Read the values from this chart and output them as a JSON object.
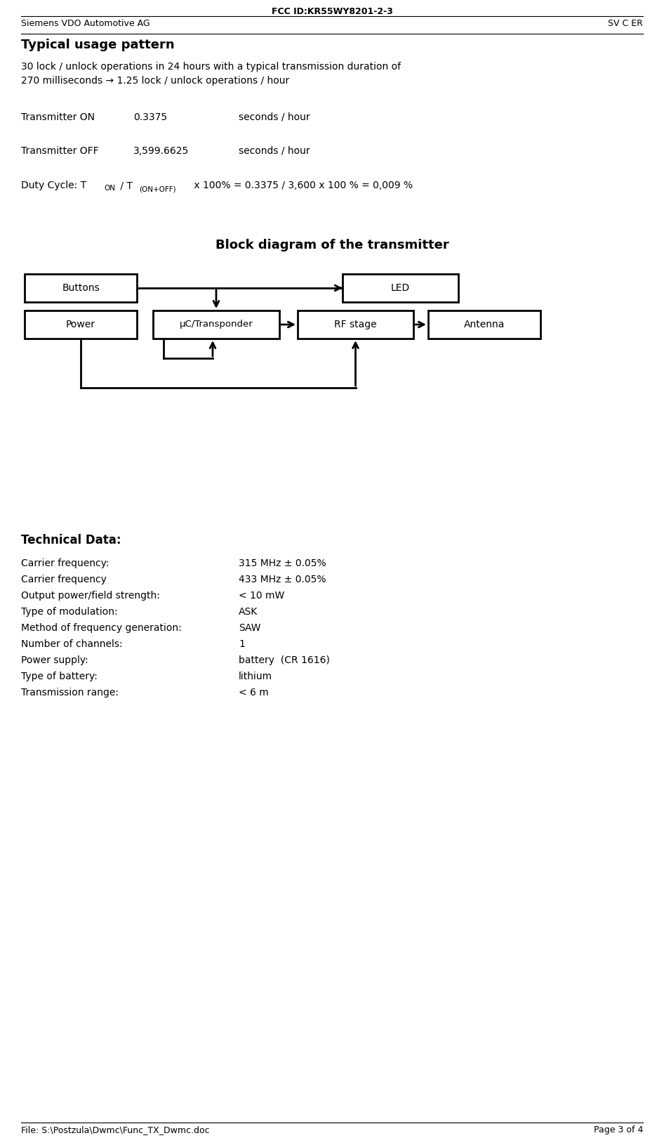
{
  "header_center": "FCC ID:KR55WY8201-2-3",
  "header_left": "Siemens VDO Automotive AG",
  "header_right": "SV C ER",
  "footer_left": "File: S:\\Postzula\\Dwmc\\Func_TX_Dwmc.doc",
  "footer_right": "Page 3 of 4",
  "section1_title": "Typical usage pattern",
  "section1_body": "30 lock / unlock operations in 24 hours with a typical transmission duration of\n270 milliseconds → 1.25 lock / unlock operations / hour",
  "transmitter_on_label": "Transmitter ON",
  "transmitter_on_val": "0.3375",
  "transmitter_on_unit": "seconds / hour",
  "transmitter_off_label": "Transmitter OFF",
  "transmitter_off_val": "3,599.6625",
  "transmitter_off_unit": "seconds / hour",
  "block_diagram_title": "Block diagram of the transmitter",
  "block_buttons": "Buttons",
  "block_power": "Power",
  "block_uc": "μC/Transponder",
  "block_rf": "RF stage",
  "block_led": "LED",
  "block_antenna": "Antenna",
  "section3_title": "Technical Data:",
  "tech_data": [
    [
      "Carrier frequency:",
      "315 MHz ± 0.05%"
    ],
    [
      "Carrier frequency",
      "433 MHz ± 0.05%"
    ],
    [
      "Output power/field strength:",
      "< 10 mW"
    ],
    [
      "Type of modulation:",
      "ASK"
    ],
    [
      "Method of frequency generation:",
      "SAW"
    ],
    [
      "Number of channels:",
      "1"
    ],
    [
      "Power supply:",
      "battery  (CR 1616)"
    ],
    [
      "Type of battery:",
      "lithium"
    ],
    [
      "Transmission range:",
      "< 6 m"
    ]
  ],
  "bg_color": "#ffffff",
  "text_color": "#000000"
}
